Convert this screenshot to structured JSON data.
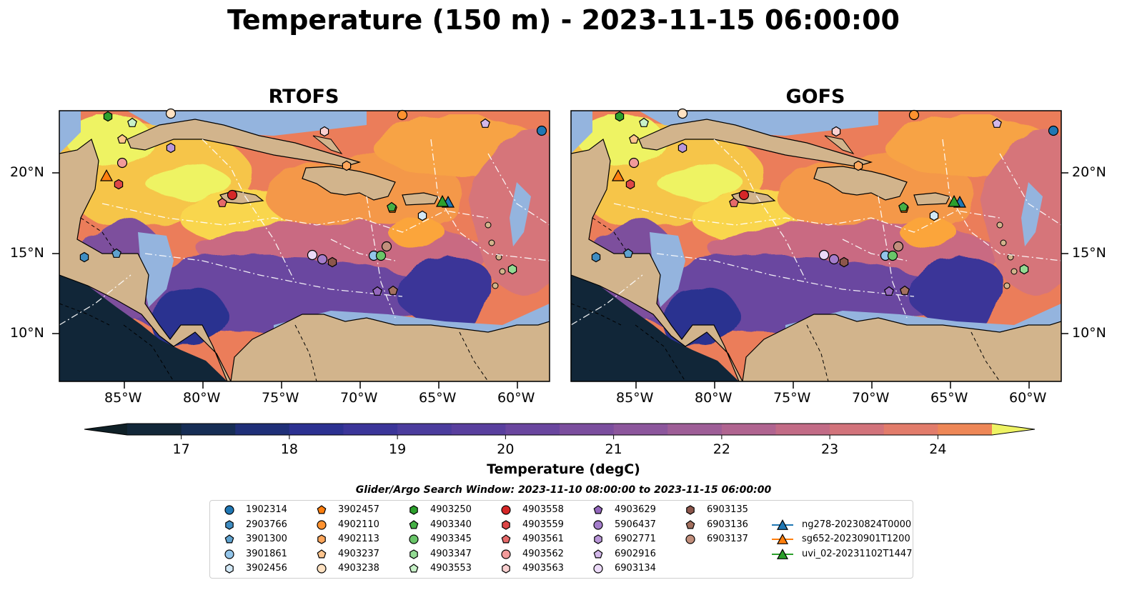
{
  "title": "Temperature (150 m) - 2023-11-15 06:00:00",
  "panels": [
    {
      "title": "RTOFS"
    },
    {
      "title": "GOFS"
    }
  ],
  "lon_ticks": [
    "85°W",
    "80°W",
    "75°W",
    "70°W",
    "65°W",
    "60°W"
  ],
  "lat_ticks": [
    "20°N",
    "15°N",
    "10°N"
  ],
  "colorbar": {
    "label": "Temperature (degC)",
    "ticks": [
      "17",
      "18",
      "19",
      "20",
      "21",
      "22",
      "23",
      "24"
    ],
    "min": 16.5,
    "max": 24.5,
    "step": 0.5,
    "extend": "both"
  },
  "legend": {
    "title": "Glider/Argo Search Window: 2023-11-10 08:00:00 to 2023-11-15 06:00:00",
    "items": [
      {
        "label": "1902314",
        "marker": "circle",
        "color": "#1f77b4"
      },
      {
        "label": "2903766",
        "marker": "hexagon",
        "color": "#3f8dc2"
      },
      {
        "label": "3901300",
        "marker": "pentagon",
        "color": "#5fa2cf"
      },
      {
        "label": "3901861",
        "marker": "circle",
        "color": "#93c5ea"
      },
      {
        "label": "3902456",
        "marker": "hexagon",
        "color": "#d2e8f6"
      },
      {
        "label": "3902457",
        "marker": "pentagon",
        "color": "#ff7f0e"
      },
      {
        "label": "4902110",
        "marker": "circle",
        "color": "#ff922f"
      },
      {
        "label": "4902113",
        "marker": "hexagon",
        "color": "#ffa75c"
      },
      {
        "label": "4903237",
        "marker": "pentagon",
        "color": "#ffc58e"
      },
      {
        "label": "4903238",
        "marker": "circle",
        "color": "#ffe2c2"
      },
      {
        "label": "4903250",
        "marker": "hexagon",
        "color": "#2ca02c"
      },
      {
        "label": "4903340",
        "marker": "pentagon",
        "color": "#45b045"
      },
      {
        "label": "4903345",
        "marker": "circle",
        "color": "#69c569"
      },
      {
        "label": "4903347",
        "marker": "hexagon",
        "color": "#93da93"
      },
      {
        "label": "4903553",
        "marker": "pentagon",
        "color": "#c8f2c8"
      },
      {
        "label": "4903558",
        "marker": "circle",
        "color": "#d62728"
      },
      {
        "label": "4903559",
        "marker": "hexagon",
        "color": "#de4647"
      },
      {
        "label": "4903561",
        "marker": "pentagon",
        "color": "#e66a6a"
      },
      {
        "label": "4903562",
        "marker": "circle",
        "color": "#f29a9a"
      },
      {
        "label": "4903563",
        "marker": "hexagon",
        "color": "#f9d0d0"
      },
      {
        "label": "4903629",
        "marker": "pentagon",
        "color": "#9467bd"
      },
      {
        "label": "5906437",
        "marker": "circle",
        "color": "#a47dcb"
      },
      {
        "label": "6902771",
        "marker": "hexagon",
        "color": "#b996d8"
      },
      {
        "label": "6902916",
        "marker": "pentagon",
        "color": "#d3b8ea"
      },
      {
        "label": "6903134",
        "marker": "circle",
        "color": "#ecdaf8"
      },
      {
        "label": "6903135",
        "marker": "hexagon",
        "color": "#8c564b"
      },
      {
        "label": "6903136",
        "marker": "pentagon",
        "color": "#a3705f"
      },
      {
        "label": "6903137",
        "marker": "circle",
        "color": "#c28f7c"
      },
      {
        "label": "ng278-20230824T0000",
        "marker": "triangle",
        "color": "#1f77b4"
      },
      {
        "label": "sg652-20230901T1200",
        "marker": "triangle",
        "color": "#ff7f0e"
      },
      {
        "label": "uvi_02-20231102T1447",
        "marker": "triangle",
        "color": "#2ca02c"
      }
    ]
  },
  "palette": {
    "land": "#d2b48c",
    "shelf": "#94b4de",
    "colormap": [
      "#0f2027",
      "#122739",
      "#162d55",
      "#1f2f78",
      "#2c3191",
      "#3b3599",
      "#4b3c9d",
      "#593f9e",
      "#6a469f",
      "#7b4e9e",
      "#8c569c",
      "#9e5e97",
      "#b06490",
      "#c26b86",
      "#d2737b",
      "#e27c6b",
      "#ee8757",
      "#f79545",
      "#fba53a",
      "#fdb83a",
      "#fbcc44",
      "#f5e055",
      "#eef364"
    ]
  }
}
